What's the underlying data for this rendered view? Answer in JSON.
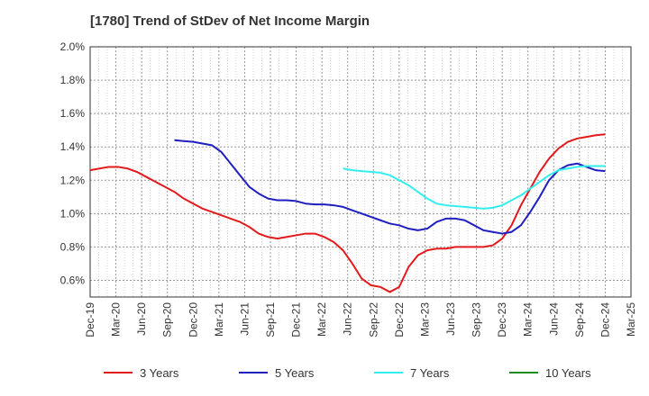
{
  "chart_data": {
    "type": "line",
    "title": "[1780]  Trend of StDev of Net Income Margin",
    "xlabel": "",
    "ylabel": "",
    "x_ticks": [
      "Dec-19",
      "Mar-20",
      "Jun-20",
      "Sep-20",
      "Dec-20",
      "Mar-21",
      "Jun-21",
      "Sep-21",
      "Dec-21",
      "Mar-22",
      "Jun-22",
      "Sep-22",
      "Dec-22",
      "Mar-23",
      "Jun-23",
      "Sep-23",
      "Dec-23",
      "Mar-24",
      "Jun-24",
      "Sep-24",
      "Dec-24",
      "Mar-25"
    ],
    "y_ticks": [
      "0.6%",
      "0.8%",
      "1.0%",
      "1.2%",
      "1.4%",
      "1.6%",
      "1.8%",
      "2.0%"
    ],
    "y_tick_values": [
      0.6,
      0.8,
      1.0,
      1.2,
      1.4,
      1.6,
      1.8,
      2.0
    ],
    "ylim": [
      0.5,
      2.0
    ],
    "grid": true,
    "legend_position": "bottom",
    "series": [
      {
        "name": "3 Years",
        "color": "#e31a1c",
        "values": [
          1.26,
          1.27,
          1.28,
          1.28,
          1.27,
          1.25,
          1.22,
          1.19,
          1.16,
          1.13,
          1.09,
          1.06,
          1.03,
          1.01,
          0.99,
          0.97,
          0.95,
          0.92,
          0.88,
          0.86,
          0.85,
          0.86,
          0.87,
          0.88,
          0.88,
          0.86,
          0.83,
          0.78,
          0.7,
          0.61,
          0.57,
          0.56,
          0.53,
          0.56,
          0.68,
          0.75,
          0.78,
          0.79,
          0.79,
          0.8,
          0.8,
          0.8,
          0.8,
          0.81,
          0.85,
          0.93,
          1.05,
          1.15,
          1.25,
          1.33,
          1.39,
          1.43,
          1.45,
          1.46,
          1.47,
          1.475
        ]
      },
      {
        "name": "5 Years",
        "color": "#1f1fbf",
        "values": [
          null,
          null,
          null,
          null,
          null,
          null,
          null,
          null,
          null,
          1.44,
          1.435,
          1.43,
          1.42,
          1.41,
          1.37,
          1.3,
          1.23,
          1.16,
          1.12,
          1.09,
          1.08,
          1.08,
          1.075,
          1.06,
          1.055,
          1.055,
          1.05,
          1.04,
          1.02,
          1.0,
          0.98,
          0.96,
          0.94,
          0.93,
          0.91,
          0.9,
          0.91,
          0.95,
          0.97,
          0.97,
          0.96,
          0.93,
          0.9,
          0.89,
          0.88,
          0.89,
          0.93,
          1.01,
          1.1,
          1.2,
          1.26,
          1.29,
          1.3,
          1.28,
          1.26,
          1.255
        ]
      },
      {
        "name": "7 Years",
        "color": "#33eeee",
        "values": [
          null,
          null,
          null,
          null,
          null,
          null,
          null,
          null,
          null,
          null,
          null,
          null,
          null,
          null,
          null,
          null,
          null,
          null,
          null,
          null,
          null,
          null,
          null,
          null,
          null,
          null,
          null,
          1.27,
          1.26,
          1.255,
          1.25,
          1.245,
          1.23,
          1.2,
          1.17,
          1.13,
          1.09,
          1.06,
          1.05,
          1.045,
          1.04,
          1.035,
          1.03,
          1.035,
          1.05,
          1.08,
          1.11,
          1.15,
          1.19,
          1.23,
          1.26,
          1.27,
          1.28,
          1.285,
          1.285,
          1.285
        ]
      },
      {
        "name": "10 Years",
        "color": "#1e8c1e",
        "values": []
      }
    ]
  }
}
